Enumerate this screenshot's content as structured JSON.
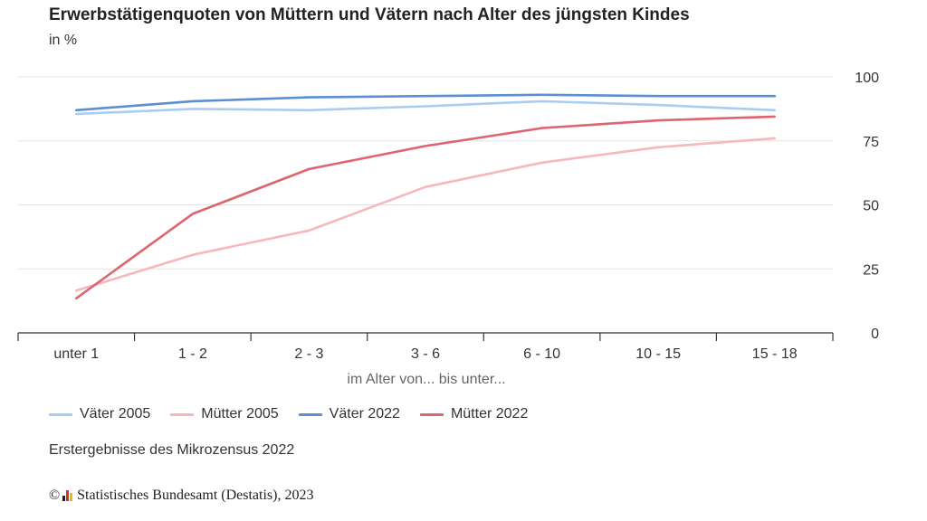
{
  "chart_data": {
    "type": "line",
    "title": "Erwerbstätigenquoten von Müttern und Vätern nach Alter des jüngsten Kindes",
    "subtitle": "in %",
    "xlabel": "im Alter von... bis unter...",
    "ylabel": "",
    "categories": [
      "unter 1",
      "1 - 2",
      "2 - 3",
      "3 - 6",
      "6 - 10",
      "10 - 15",
      "15 - 18"
    ],
    "ylim": [
      0,
      100
    ],
    "yticks": [
      0,
      25,
      50,
      75,
      100
    ],
    "y_axis_side": "right",
    "grid": true,
    "legend_position": "bottom-left",
    "series": [
      {
        "name": "Väter 2005",
        "color": "#a8cdf0",
        "values": [
          85.5,
          87.5,
          87.0,
          88.5,
          90.5,
          89.0,
          87.0
        ]
      },
      {
        "name": "Mütter 2005",
        "color": "#f6b8bc",
        "values": [
          16.5,
          30.5,
          40.0,
          57.0,
          66.5,
          72.5,
          76.0
        ]
      },
      {
        "name": "Väter 2022",
        "color": "#5b8fd0",
        "values": [
          87.0,
          90.5,
          92.0,
          92.5,
          93.0,
          92.5,
          92.5
        ]
      },
      {
        "name": "Mütter 2022",
        "color": "#de6470",
        "values": [
          13.5,
          46.5,
          64.0,
          73.0,
          80.0,
          83.0,
          84.5
        ]
      }
    ]
  },
  "footnote": "Erstergebnisse des Mikrozensus 2022",
  "source": {
    "copyright_symbol": "©",
    "text": "Statistisches Bundesamt (Destatis), 2023",
    "logo_icon": "destatis-logo-icon"
  }
}
